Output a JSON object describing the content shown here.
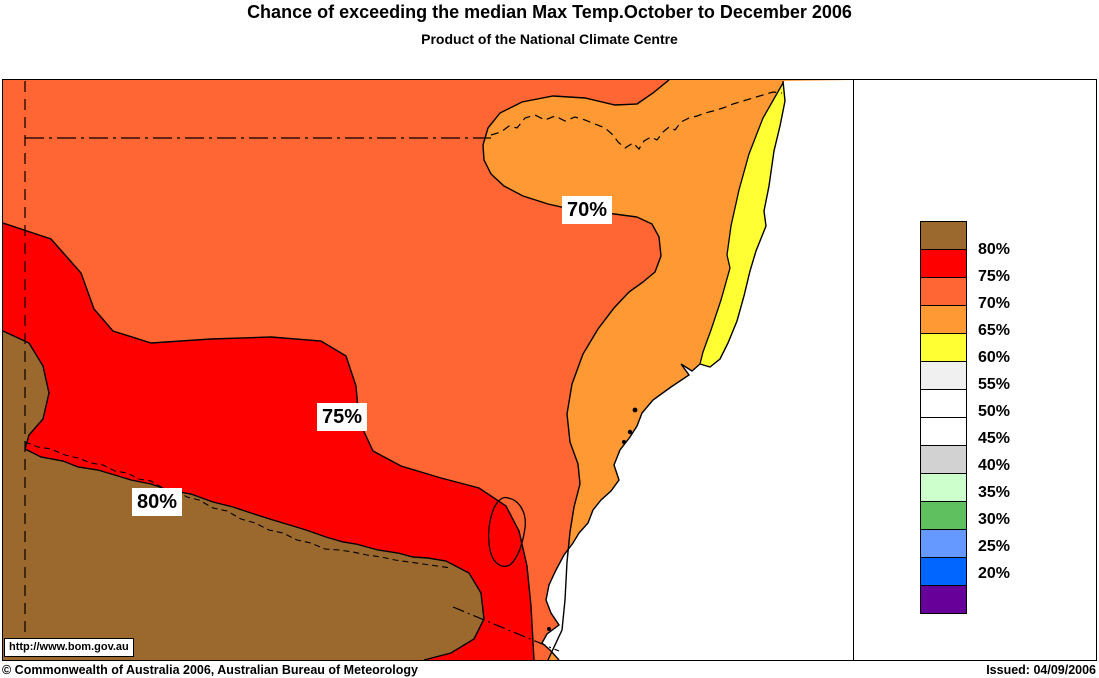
{
  "title": "Chance of exceeding the median Max Temp.October to December 2006",
  "subtitle": "Product of the National Climate Centre",
  "colors": {
    "above_80": "#9B692D",
    "band_75_80": "#FF0000",
    "band_70_75": "#FF6633",
    "band_65_70": "#FF9933",
    "band_60_65": "#FFFF33",
    "band_55_60": "#F0F0F0",
    "band_50_55": "#FFFFFF",
    "band_45_50": "#FFFFFF",
    "band_40_45": "#D2D2D2",
    "band_35_40": "#CCFFCC",
    "band_30_35": "#5FC05F",
    "band_25_30": "#6699FF",
    "band_20_25": "#0066FF",
    "below_20": "#660099",
    "ocean": "#FFFFFF",
    "contour_line": "#000000"
  },
  "map": {
    "contour_labels": {
      "l70": "70%",
      "l75": "75%",
      "l80": "80%"
    },
    "url_label": "http://www.bom.gov.au"
  },
  "legend": {
    "swatches": [
      "#9B692D",
      "#FF0000",
      "#FF6633",
      "#FF9933",
      "#FFFF33",
      "#F0F0F0",
      "#FFFFFF",
      "#FFFFFF",
      "#D2D2D2",
      "#CCFFCC",
      "#5FC05F",
      "#6699FF",
      "#0066FF",
      "#660099"
    ],
    "labels": [
      "80%",
      "75%",
      "70%",
      "65%",
      "60%",
      "55%",
      "50%",
      "45%",
      "40%",
      "35%",
      "30%",
      "25%",
      "20%"
    ]
  },
  "footer": {
    "copyright": "© Commonwealth of Australia 2006, Australian Bureau of Meteorology",
    "issued": "Issued: 04/09/2006"
  }
}
